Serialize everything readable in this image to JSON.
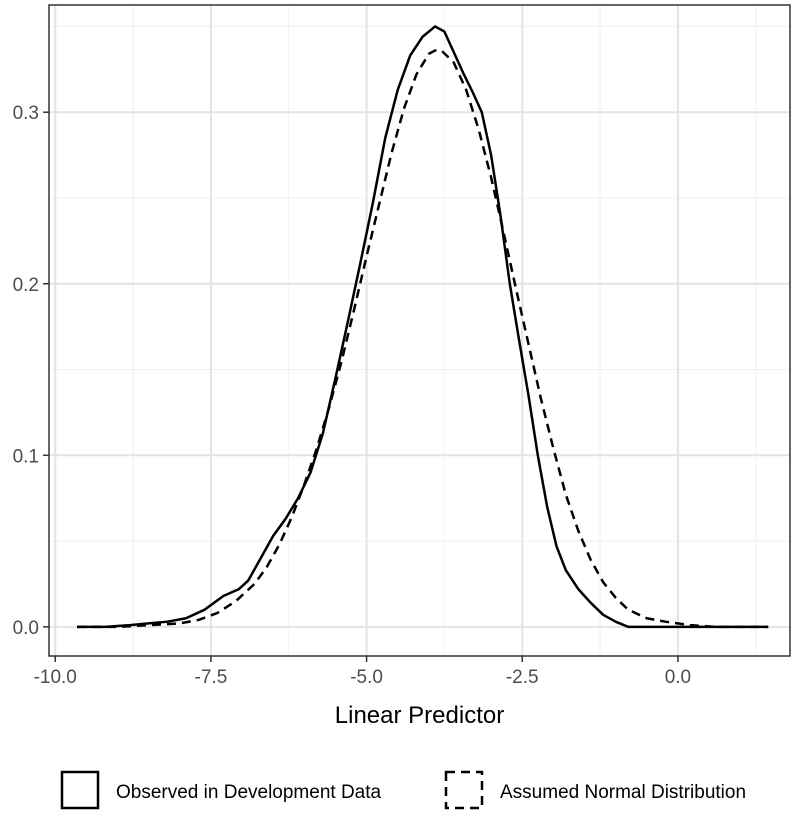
{
  "chart_data": {
    "type": "line",
    "title": "",
    "xlabel": "Linear Predictor",
    "ylabel": "",
    "xlim": [
      -10.1,
      1.8
    ],
    "ylim": [
      -0.017,
      0.3625
    ],
    "x_ticks": [
      -10.0,
      -7.5,
      -5.0,
      -2.5,
      0.0
    ],
    "x_tick_labels": [
      "-10.0",
      "-7.5",
      "-5.0",
      "-2.5",
      "0.0"
    ],
    "y_ticks": [
      0.0,
      0.1,
      0.2,
      0.3
    ],
    "y_tick_labels": [
      "0.0",
      "0.1",
      "0.2",
      "0.3"
    ],
    "grid": true,
    "legend_position": "bottom",
    "series": [
      {
        "name": "Observed in Development Data",
        "style": "solid",
        "color": "#000000",
        "points": [
          [
            -9.65,
            0.0
          ],
          [
            -9.2,
            0.0
          ],
          [
            -8.8,
            0.001
          ],
          [
            -8.5,
            0.002
          ],
          [
            -8.2,
            0.003
          ],
          [
            -7.9,
            0.005
          ],
          [
            -7.6,
            0.01
          ],
          [
            -7.3,
            0.018
          ],
          [
            -7.05,
            0.022
          ],
          [
            -6.9,
            0.027
          ],
          [
            -6.7,
            0.04
          ],
          [
            -6.5,
            0.053
          ],
          [
            -6.3,
            0.063
          ],
          [
            -6.1,
            0.075
          ],
          [
            -5.9,
            0.09
          ],
          [
            -5.7,
            0.113
          ],
          [
            -5.5,
            0.145
          ],
          [
            -5.3,
            0.178
          ],
          [
            -5.1,
            0.212
          ],
          [
            -4.9,
            0.247
          ],
          [
            -4.7,
            0.285
          ],
          [
            -4.5,
            0.313
          ],
          [
            -4.3,
            0.333
          ],
          [
            -4.1,
            0.344
          ],
          [
            -3.9,
            0.35
          ],
          [
            -3.75,
            0.347
          ],
          [
            -3.6,
            0.335
          ],
          [
            -3.45,
            0.323
          ],
          [
            -3.3,
            0.312
          ],
          [
            -3.15,
            0.3
          ],
          [
            -3.0,
            0.275
          ],
          [
            -2.85,
            0.24
          ],
          [
            -2.7,
            0.2
          ],
          [
            -2.55,
            0.167
          ],
          [
            -2.4,
            0.135
          ],
          [
            -2.25,
            0.1
          ],
          [
            -2.1,
            0.07
          ],
          [
            -1.95,
            0.047
          ],
          [
            -1.8,
            0.033
          ],
          [
            -1.6,
            0.022
          ],
          [
            -1.4,
            0.014
          ],
          [
            -1.2,
            0.007
          ],
          [
            -1.0,
            0.003
          ],
          [
            -0.8,
            0.0
          ],
          [
            -0.5,
            0.0
          ],
          [
            0.0,
            0.0
          ],
          [
            0.6,
            0.0
          ],
          [
            1.2,
            0.0
          ],
          [
            1.45,
            0.0
          ]
        ]
      },
      {
        "name": "Assumed Normal Distribution",
        "style": "dashed",
        "color": "#000000",
        "points": [
          [
            -9.65,
            0.0
          ],
          [
            -9.0,
            0.0
          ],
          [
            -8.5,
            0.001
          ],
          [
            -8.0,
            0.002
          ],
          [
            -7.7,
            0.004
          ],
          [
            -7.4,
            0.008
          ],
          [
            -7.1,
            0.015
          ],
          [
            -6.8,
            0.025
          ],
          [
            -6.6,
            0.035
          ],
          [
            -6.4,
            0.048
          ],
          [
            -6.2,
            0.064
          ],
          [
            -6.0,
            0.083
          ],
          [
            -5.8,
            0.104
          ],
          [
            -5.6,
            0.128
          ],
          [
            -5.4,
            0.155
          ],
          [
            -5.2,
            0.185
          ],
          [
            -5.0,
            0.216
          ],
          [
            -4.8,
            0.246
          ],
          [
            -4.6,
            0.276
          ],
          [
            -4.4,
            0.302
          ],
          [
            -4.2,
            0.322
          ],
          [
            -4.0,
            0.334
          ],
          [
            -3.9,
            0.336
          ],
          [
            -3.8,
            0.336
          ],
          [
            -3.6,
            0.329
          ],
          [
            -3.4,
            0.313
          ],
          [
            -3.2,
            0.29
          ],
          [
            -3.0,
            0.262
          ],
          [
            -2.8,
            0.23
          ],
          [
            -2.6,
            0.197
          ],
          [
            -2.4,
            0.165
          ],
          [
            -2.2,
            0.133
          ],
          [
            -2.0,
            0.104
          ],
          [
            -1.8,
            0.077
          ],
          [
            -1.6,
            0.056
          ],
          [
            -1.4,
            0.039
          ],
          [
            -1.2,
            0.026
          ],
          [
            -1.0,
            0.017
          ],
          [
            -0.8,
            0.01
          ],
          [
            -0.5,
            0.005
          ],
          [
            -0.2,
            0.003
          ],
          [
            0.2,
            0.001
          ],
          [
            0.6,
            0.0
          ],
          [
            1.0,
            0.0
          ],
          [
            1.45,
            0.0
          ]
        ]
      }
    ]
  }
}
